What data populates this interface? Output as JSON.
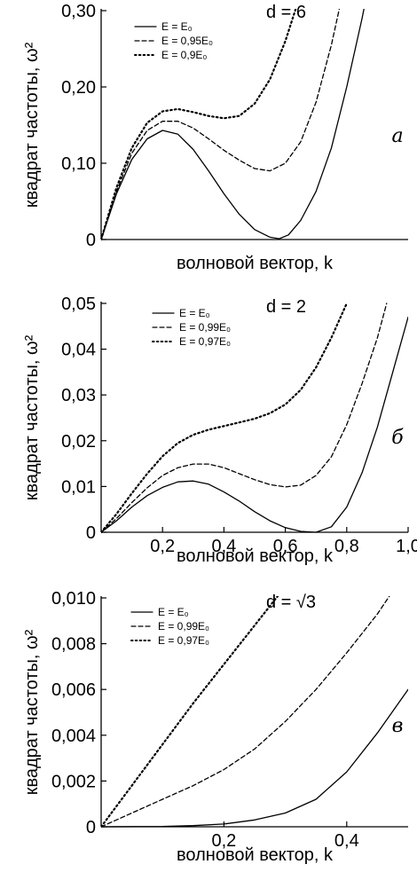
{
  "figure": {
    "ylabel": "квадрат частоты, ω²",
    "xlabel": "волновой вектор, k"
  },
  "chart_data": [
    {
      "type": "line",
      "panel_label": "а",
      "d_label": "d = 6",
      "xlabel": "волновой вектор, k",
      "ylabel": "квадрат частоты, ω²",
      "xlim": [
        0,
        1
      ],
      "ylim": [
        0,
        0.3
      ],
      "y_ticks": [
        "0",
        "0,10",
        "0,20",
        "0,30"
      ],
      "x_ticks": [],
      "legend_position": "top-left",
      "series": [
        {
          "name": "E = E₀",
          "style": "solid",
          "points": [
            [
              0,
              0
            ],
            [
              0.05,
              0.06
            ],
            [
              0.1,
              0.105
            ],
            [
              0.15,
              0.132
            ],
            [
              0.2,
              0.143
            ],
            [
              0.25,
              0.138
            ],
            [
              0.3,
              0.118
            ],
            [
              0.35,
              0.09
            ],
            [
              0.4,
              0.06
            ],
            [
              0.45,
              0.033
            ],
            [
              0.5,
              0.013
            ],
            [
              0.55,
              0.003
            ],
            [
              0.58,
              0.001
            ],
            [
              0.61,
              0.006
            ],
            [
              0.65,
              0.025
            ],
            [
              0.7,
              0.063
            ],
            [
              0.75,
              0.12
            ],
            [
              0.8,
              0.2
            ],
            [
              0.85,
              0.29
            ],
            [
              0.87,
              0.33
            ]
          ]
        },
        {
          "name": "E = 0,95E₀",
          "style": "dashed",
          "points": [
            [
              0,
              0
            ],
            [
              0.05,
              0.063
            ],
            [
              0.1,
              0.113
            ],
            [
              0.15,
              0.143
            ],
            [
              0.2,
              0.155
            ],
            [
              0.25,
              0.155
            ],
            [
              0.3,
              0.146
            ],
            [
              0.35,
              0.132
            ],
            [
              0.4,
              0.117
            ],
            [
              0.45,
              0.104
            ],
            [
              0.5,
              0.093
            ],
            [
              0.55,
              0.09
            ],
            [
              0.6,
              0.1
            ],
            [
              0.65,
              0.128
            ],
            [
              0.7,
              0.18
            ],
            [
              0.75,
              0.255
            ],
            [
              0.78,
              0.31
            ]
          ]
        },
        {
          "name": "E = 0,9E₀",
          "style": "dotted",
          "points": [
            [
              0,
              0
            ],
            [
              0.05,
              0.068
            ],
            [
              0.1,
              0.12
            ],
            [
              0.15,
              0.153
            ],
            [
              0.2,
              0.168
            ],
            [
              0.25,
              0.171
            ],
            [
              0.3,
              0.167
            ],
            [
              0.35,
              0.162
            ],
            [
              0.4,
              0.159
            ],
            [
              0.45,
              0.162
            ],
            [
              0.5,
              0.178
            ],
            [
              0.55,
              0.21
            ],
            [
              0.6,
              0.26
            ],
            [
              0.64,
              0.31
            ]
          ]
        }
      ]
    },
    {
      "type": "line",
      "panel_label": "б",
      "d_label": "d = 2",
      "xlabel": "волновой вектор, k",
      "ylabel": "квадрат частоты, ω²",
      "xlim": [
        0,
        1
      ],
      "ylim": [
        0,
        0.05
      ],
      "y_ticks": [
        "0",
        "0,01",
        "0,02",
        "0,03",
        "0,04",
        "0,05"
      ],
      "x_ticks": [
        "0,2",
        "0,4",
        "0,6",
        "0,8",
        "1,0"
      ],
      "legend_position": "top-left",
      "series": [
        {
          "name": "E = E₀",
          "style": "solid",
          "points": [
            [
              0,
              0
            ],
            [
              0.05,
              0.0025
            ],
            [
              0.1,
              0.0055
            ],
            [
              0.15,
              0.008
            ],
            [
              0.2,
              0.0098
            ],
            [
              0.25,
              0.011
            ],
            [
              0.3,
              0.0112
            ],
            [
              0.35,
              0.0105
            ],
            [
              0.4,
              0.0088
            ],
            [
              0.45,
              0.0068
            ],
            [
              0.5,
              0.0045
            ],
            [
              0.55,
              0.0025
            ],
            [
              0.6,
              0.001
            ],
            [
              0.65,
              0.0002
            ],
            [
              0.7,
              0
            ],
            [
              0.75,
              0.0012
            ],
            [
              0.8,
              0.0055
            ],
            [
              0.85,
              0.013
            ],
            [
              0.9,
              0.023
            ],
            [
              0.95,
              0.035
            ],
            [
              1.0,
              0.047
            ]
          ]
        },
        {
          "name": "E = 0,99E₀",
          "style": "dashed",
          "points": [
            [
              0,
              0
            ],
            [
              0.05,
              0.003
            ],
            [
              0.1,
              0.0065
            ],
            [
              0.15,
              0.0097
            ],
            [
              0.2,
              0.0124
            ],
            [
              0.25,
              0.0141
            ],
            [
              0.3,
              0.0149
            ],
            [
              0.35,
              0.0149
            ],
            [
              0.4,
              0.0141
            ],
            [
              0.45,
              0.0128
            ],
            [
              0.5,
              0.0115
            ],
            [
              0.55,
              0.0104
            ],
            [
              0.6,
              0.0099
            ],
            [
              0.65,
              0.0103
            ],
            [
              0.7,
              0.0124
            ],
            [
              0.75,
              0.0165
            ],
            [
              0.8,
              0.0235
            ],
            [
              0.85,
              0.0325
            ],
            [
              0.9,
              0.0425
            ],
            [
              0.93,
              0.05
            ]
          ]
        },
        {
          "name": "E = 0,97E₀",
          "style": "dotted",
          "points": [
            [
              0,
              0
            ],
            [
              0.05,
              0.004
            ],
            [
              0.1,
              0.0085
            ],
            [
              0.15,
              0.0128
            ],
            [
              0.2,
              0.0166
            ],
            [
              0.25,
              0.0195
            ],
            [
              0.3,
              0.0213
            ],
            [
              0.35,
              0.0224
            ],
            [
              0.4,
              0.0232
            ],
            [
              0.45,
              0.024
            ],
            [
              0.5,
              0.0248
            ],
            [
              0.55,
              0.026
            ],
            [
              0.6,
              0.0279
            ],
            [
              0.65,
              0.0311
            ],
            [
              0.7,
              0.036
            ],
            [
              0.75,
              0.0425
            ],
            [
              0.8,
              0.05
            ]
          ]
        }
      ]
    },
    {
      "type": "line",
      "panel_label": "в",
      "d_label": "d = √3",
      "xlabel": "волновой вектор, k",
      "ylabel": "квадрат частоты, ω²",
      "xlim": [
        0,
        0.5
      ],
      "ylim": [
        0,
        0.01
      ],
      "y_ticks": [
        "0",
        "0,002",
        "0,004",
        "0,006",
        "0,008",
        "0,010"
      ],
      "x_ticks": [
        "0,2",
        "0,4"
      ],
      "legend_position": "top-left",
      "series": [
        {
          "name": "E = E₀",
          "style": "solid",
          "points": [
            [
              0,
              0
            ],
            [
              0.1,
              1e-05
            ],
            [
              0.15,
              5e-05
            ],
            [
              0.2,
              0.00012
            ],
            [
              0.25,
              0.0003
            ],
            [
              0.3,
              0.0006
            ],
            [
              0.35,
              0.0012
            ],
            [
              0.4,
              0.0024
            ],
            [
              0.45,
              0.0041
            ],
            [
              0.5,
              0.006
            ]
          ]
        },
        {
          "name": "E = 0,99E₀",
          "style": "dashed",
          "points": [
            [
              0,
              0
            ],
            [
              0.05,
              0.0006
            ],
            [
              0.1,
              0.0012
            ],
            [
              0.15,
              0.0018
            ],
            [
              0.2,
              0.0025
            ],
            [
              0.25,
              0.0034
            ],
            [
              0.3,
              0.0046
            ],
            [
              0.35,
              0.006
            ],
            [
              0.4,
              0.0076
            ],
            [
              0.45,
              0.0093
            ],
            [
              0.48,
              0.0105
            ]
          ]
        },
        {
          "name": "E = 0,97E₀",
          "style": "dotted",
          "points": [
            [
              0,
              0
            ],
            [
              0.05,
              0.0018
            ],
            [
              0.1,
              0.0036
            ],
            [
              0.15,
              0.0054
            ],
            [
              0.2,
              0.0071
            ],
            [
              0.25,
              0.0088
            ],
            [
              0.3,
              0.0105
            ]
          ]
        }
      ]
    }
  ]
}
